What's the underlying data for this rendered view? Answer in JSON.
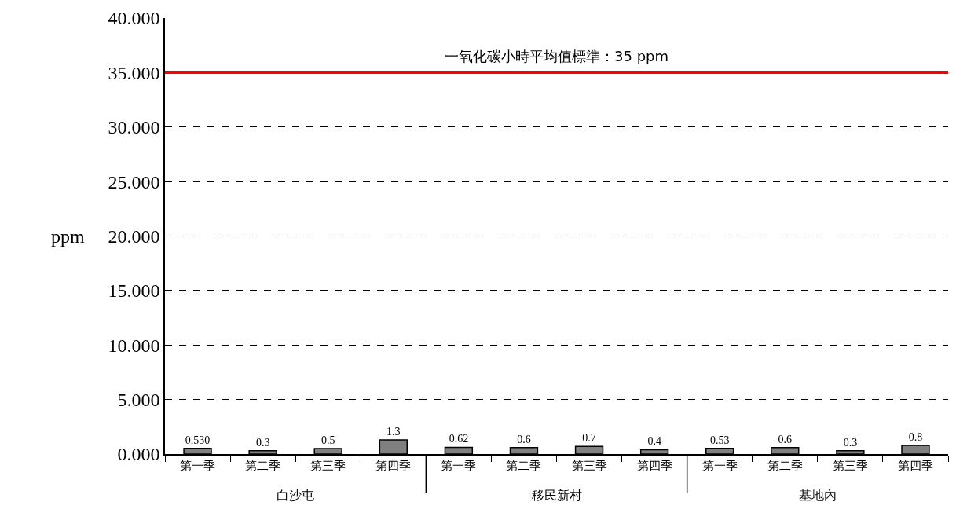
{
  "chart_data": {
    "type": "bar",
    "categories": [
      "第一季",
      "第二季",
      "第三季",
      "第四季",
      "第一季",
      "第二季",
      "第三季",
      "第四季",
      "第一季",
      "第二季",
      "第三季",
      "第四季"
    ],
    "values": [
      0.53,
      0.3,
      0.5,
      1.3,
      0.62,
      0.6,
      0.7,
      0.4,
      0.53,
      0.6,
      0.3,
      0.8
    ],
    "value_labels": [
      "0.530",
      "0.3",
      "0.5",
      "1.3",
      "0.62",
      "0.6",
      "0.7",
      "0.4",
      "0.53",
      "0.6",
      "0.3",
      "0.8"
    ],
    "color": "#808080",
    "ylabel": "ppm",
    "ylim": [
      0,
      40
    ],
    "yticks": [
      {
        "value": 0,
        "label": "0.000"
      },
      {
        "value": 5,
        "label": "5.000"
      },
      {
        "value": 10,
        "label": "10.000"
      },
      {
        "value": 15,
        "label": "15.000"
      },
      {
        "value": 20,
        "label": "20.000"
      },
      {
        "value": 25,
        "label": "25.000"
      },
      {
        "value": 30,
        "label": "30.000"
      },
      {
        "value": 35,
        "label": "35.000"
      },
      {
        "value": 40,
        "label": "40.000"
      }
    ],
    "grid": "y",
    "ref_lines": [
      {
        "axis": "y",
        "value": 35,
        "label": "一氧化碳小時平均值標準：35 ppm",
        "color": "#ff0000",
        "line_style": "solid"
      }
    ],
    "annotations": [
      "白沙屯",
      "移民新村",
      "基地內"
    ],
    "legend": false
  }
}
